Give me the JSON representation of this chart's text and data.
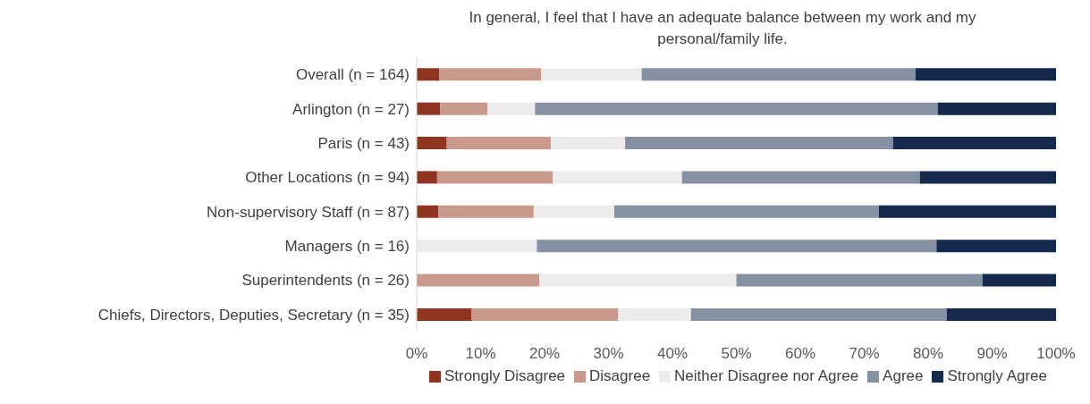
{
  "chart_data": {
    "type": "bar",
    "orientation": "horizontal",
    "stacked": true,
    "title": "In general, I feel that I have an adequate balance between my work and my personal/family life.",
    "categories": [
      "Overall (n = 164)",
      "Arlington (n = 27)",
      "Paris (n = 43)",
      "Other Locations (n = 94)",
      "Non-supervisory Staff (n = 87)",
      "Managers (n = 16)",
      "Superintendents (n = 26)",
      "Chiefs, Directors, Deputies, Secretary (n = 35)"
    ],
    "series": [
      {
        "name": "Strongly Disagree",
        "color": "#8e3420",
        "values": [
          3.5,
          3.7,
          4.7,
          3.2,
          3.4,
          0,
          0,
          8.6
        ]
      },
      {
        "name": "Disagree",
        "color": "#c9998c",
        "values": [
          16.0,
          7.4,
          16.3,
          18.1,
          14.9,
          0,
          19.2,
          22.9
        ]
      },
      {
        "name": "Neither Disagree nor Agree",
        "color": "#ececec",
        "values": [
          15.7,
          7.4,
          11.6,
          20.2,
          12.6,
          18.8,
          30.8,
          11.4
        ]
      },
      {
        "name": "Agree",
        "color": "#8590a2",
        "values": [
          42.8,
          63.0,
          41.9,
          37.2,
          41.4,
          62.5,
          38.5,
          40.0
        ]
      },
      {
        "name": "Strongly Agree",
        "color": "#14294b",
        "values": [
          22.0,
          18.5,
          25.5,
          21.3,
          27.7,
          18.7,
          11.5,
          17.1
        ]
      }
    ],
    "xlim": [
      0,
      100
    ],
    "xticks": [
      {
        "value": 0,
        "label": "0%"
      },
      {
        "value": 10,
        "label": "10%"
      },
      {
        "value": 20,
        "label": "20%"
      },
      {
        "value": 30,
        "label": "30%"
      },
      {
        "value": 40,
        "label": "40%"
      },
      {
        "value": 50,
        "label": "50%"
      },
      {
        "value": 60,
        "label": "60%"
      },
      {
        "value": 70,
        "label": "70%"
      },
      {
        "value": 80,
        "label": "80%"
      },
      {
        "value": 90,
        "label": "90%"
      },
      {
        "value": 100,
        "label": "100%"
      }
    ],
    "grid": false,
    "legend": "bottom right"
  }
}
